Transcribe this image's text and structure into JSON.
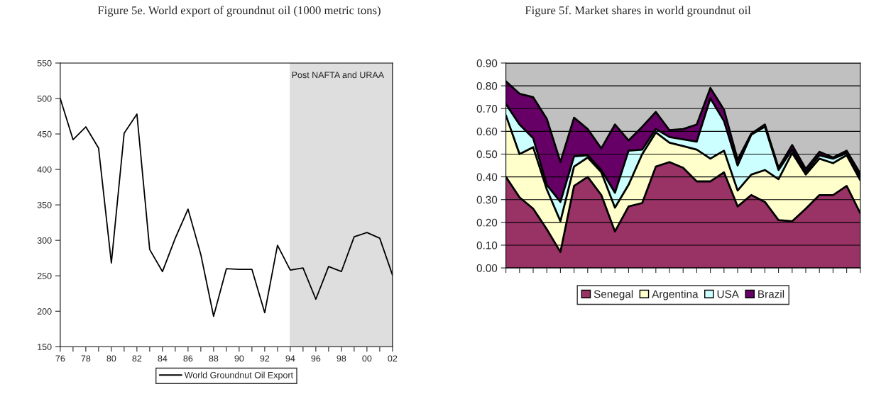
{
  "chart_data": [
    {
      "type": "line",
      "title": "Figure 5e. World export of groundnut oil (1000 metric tons)",
      "x": [
        1976,
        1977,
        1978,
        1979,
        1980,
        1981,
        1982,
        1983,
        1984,
        1985,
        1986,
        1987,
        1988,
        1989,
        1990,
        1991,
        1992,
        1993,
        1994,
        1995,
        1996,
        1997,
        1998,
        1999,
        2000,
        2001,
        2002
      ],
      "series": [
        {
          "name": "World Groundnut Oil Export",
          "color": "#000000",
          "values": [
            500,
            442,
            460,
            430,
            268,
            451,
            478,
            287,
            256,
            303,
            344,
            280,
            193,
            260,
            259,
            259,
            198,
            293,
            258,
            261,
            217,
            263,
            256,
            305,
            311,
            303,
            251
          ]
        }
      ],
      "xlim": [
        1976,
        2002
      ],
      "xticks": [
        {
          "value": 1976,
          "label": "76"
        },
        {
          "value": 1977,
          "label": null
        },
        {
          "value": 1978,
          "label": "78"
        },
        {
          "value": 1979,
          "label": null
        },
        {
          "value": 1980,
          "label": "80"
        },
        {
          "value": 1981,
          "label": null
        },
        {
          "value": 1982,
          "label": "82"
        },
        {
          "value": 1983,
          "label": null
        },
        {
          "value": 1984,
          "label": "84"
        },
        {
          "value": 1985,
          "label": null
        },
        {
          "value": 1986,
          "label": "86"
        },
        {
          "value": 1987,
          "label": null
        },
        {
          "value": 1988,
          "label": "88"
        },
        {
          "value": 1989,
          "label": null
        },
        {
          "value": 1990,
          "label": "90"
        },
        {
          "value": 1991,
          "label": null
        },
        {
          "value": 1992,
          "label": "92"
        },
        {
          "value": 1993,
          "label": null
        },
        {
          "value": 1994,
          "label": "94"
        },
        {
          "value": 1995,
          "label": null
        },
        {
          "value": 1996,
          "label": "96"
        },
        {
          "value": 1997,
          "label": null
        },
        {
          "value": 1998,
          "label": "98"
        },
        {
          "value": 1999,
          "label": null
        },
        {
          "value": 2000,
          "label": "00"
        },
        {
          "value": 2001,
          "label": null
        },
        {
          "value": 2002,
          "label": "02"
        }
      ],
      "ylim": [
        150,
        550
      ],
      "yticks": [
        150,
        200,
        250,
        300,
        350,
        400,
        450,
        500,
        550
      ],
      "bands": [
        {
          "axis": "x",
          "from": 1994,
          "to": 2002,
          "label": "Post NAFTA and URAA",
          "color": "#dedede"
        }
      ],
      "grid": false,
      "legend": "bottom",
      "line_style": "solid"
    },
    {
      "type": "area",
      "title": "Figure 5f. Market shares in world groundnut oil",
      "stacked": true,
      "categories": [
        null,
        null,
        null,
        null,
        null,
        null,
        null,
        null,
        null,
        null,
        null,
        null,
        null,
        null,
        null,
        null,
        null,
        null,
        null,
        null,
        null,
        null,
        null,
        null,
        null,
        null,
        null
      ],
      "series": [
        {
          "name": "Senegal",
          "color": "#993366",
          "values": [
            0.4,
            0.31,
            0.26,
            0.17,
            0.07,
            0.36,
            0.4,
            0.32,
            0.16,
            0.27,
            0.285,
            0.445,
            0.465,
            0.44,
            0.38,
            0.38,
            0.42,
            0.27,
            0.32,
            0.29,
            0.21,
            0.205,
            0.26,
            0.32,
            0.32,
            0.36,
            0.24
          ]
        },
        {
          "name": "Argentina",
          "color": "#ffffcc",
          "values": [
            0.27,
            0.19,
            0.27,
            0.175,
            0.135,
            0.085,
            0.085,
            0.1,
            0.105,
            0.095,
            0.215,
            0.15,
            0.085,
            0.095,
            0.14,
            0.1,
            0.095,
            0.07,
            0.09,
            0.14,
            0.18,
            0.3,
            0.15,
            0.16,
            0.14,
            0.135,
            0.145
          ]
        },
        {
          "name": "USA",
          "color": "#ccffff",
          "values": [
            0.05,
            0.13,
            0.04,
            0.02,
            0.085,
            0.045,
            0.01,
            0.01,
            0.065,
            0.15,
            0.02,
            0.015,
            0.025,
            0.03,
            0.035,
            0.265,
            0.13,
            0.11,
            0.175,
            0.19,
            0.04,
            0.015,
            0.01,
            0.015,
            0.02,
            0.01,
            0.015
          ]
        },
        {
          "name": "Brazil",
          "color": "#660066",
          "values": [
            0.1,
            0.135,
            0.18,
            0.29,
            0.175,
            0.17,
            0.115,
            0.095,
            0.3,
            0.045,
            0.1,
            0.075,
            0.03,
            0.045,
            0.075,
            0.045,
            0.05,
            0.025,
            0.005,
            0.01,
            0.01,
            0.02,
            0.015,
            0.015,
            0.005,
            0.01,
            0.015
          ]
        }
      ],
      "ylim": [
        0,
        0.9
      ],
      "yticks": [
        {
          "value": 0,
          "label": "0.00"
        },
        {
          "value": 0.1,
          "label": "0.10"
        },
        {
          "value": 0.2,
          "label": "0.20"
        },
        {
          "value": 0.3,
          "label": "0.30"
        },
        {
          "value": 0.4,
          "label": "0.40"
        },
        {
          "value": 0.5,
          "label": "0.50"
        },
        {
          "value": 0.6,
          "label": "0.60"
        },
        {
          "value": 0.7,
          "label": "0.70"
        },
        {
          "value": 0.8,
          "label": "0.80"
        },
        {
          "value": 0.9,
          "label": "0.90"
        }
      ],
      "grid": "y",
      "legend": "bottom"
    }
  ]
}
